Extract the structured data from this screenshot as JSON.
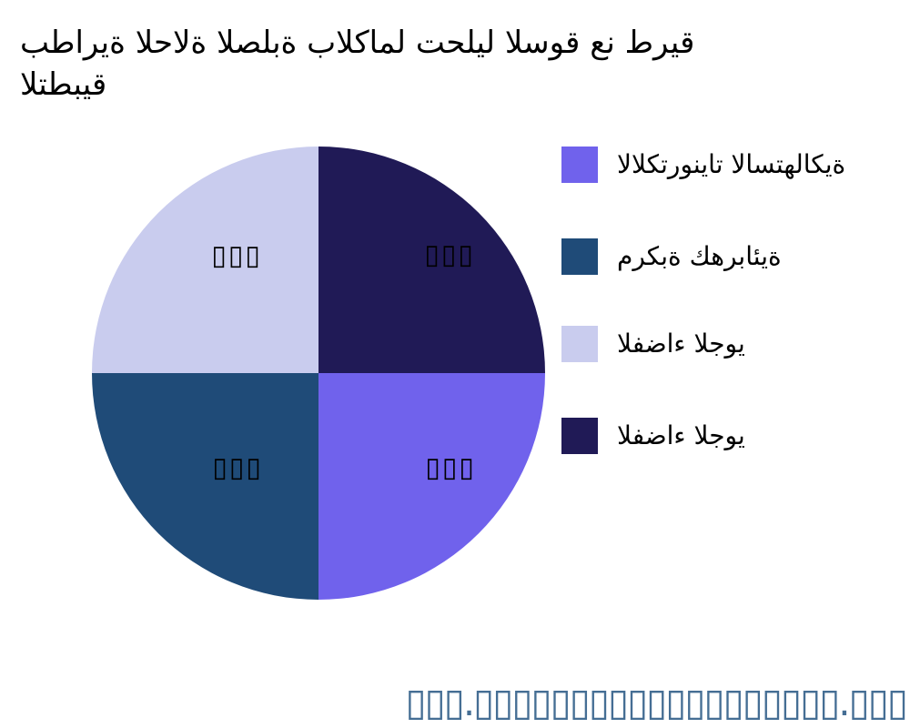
{
  "chart_data": {
    "type": "pie",
    "title": "بطارية الحالة الصلبة بالكامل تحليل السوق عن طريق\nالتطبيق",
    "units": "percent",
    "legend_position": "right",
    "start_angle": "east-clockwise",
    "slices": [
      {
        "label": "الالكترونيات الاستهلاكية",
        "value": 25,
        "value_label_display": "▯▯▯",
        "color": "#7062EC",
        "quadrant": "bottom-right"
      },
      {
        "label": "مركبة كهربائية",
        "value": 25,
        "value_label_display": "▯▯▯",
        "color": "#1F4B78",
        "quadrant": "bottom-left"
      },
      {
        "label": "الفضاء الجوي",
        "value": 25,
        "value_label_display": "▯▯▯",
        "color": "#C9CCEE",
        "quadrant": "top-left"
      },
      {
        "label": "الفضاء الجوي",
        "value": 25,
        "value_label_display": "▯▯▯",
        "color": "#201A56",
        "quadrant": "top-right"
      }
    ]
  },
  "footer": {
    "watermark_text": "▯▯▯.▯▯▯▯▯▯▯▯▯▯▯▯▯▯▯▯▯▯▯.▯▯▯",
    "color": "#456E94"
  }
}
